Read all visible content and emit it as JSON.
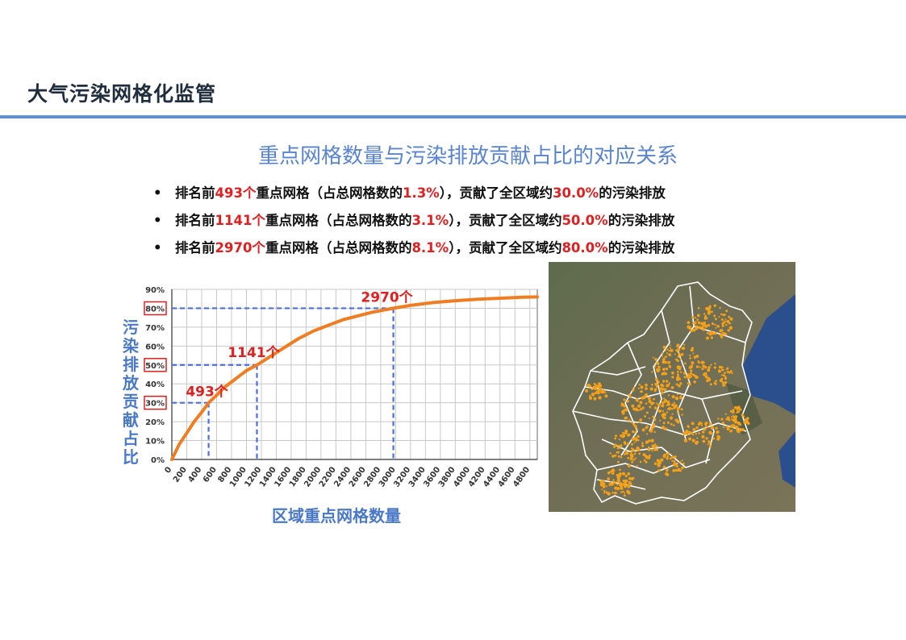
{
  "page": {
    "title": "大气污染网格化监管",
    "subtitle": "重点网格数量与污染排放贡献占比的对应关系"
  },
  "bullets": [
    {
      "p1": "排名前",
      "n": "493个",
      "p2": "重点网格（占总网格数的",
      "pct": "1.3%",
      "p3": "），贡献了全区域约",
      "share": "30.0%",
      "p4": "的污染排放"
    },
    {
      "p1": "排名前",
      "n": "1141个",
      "p2": "重点网格（占总网格数的",
      "pct": "3.1%",
      "p3": "），贡献了全区域约",
      "share": "50.0%",
      "p4": "的污染排放"
    },
    {
      "p1": "排名前",
      "n": "2970个",
      "p2": "重点网格（占总网格数的",
      "pct": "8.1%",
      "p3": "），贡献了全区域约",
      "share": "80.0%",
      "p4": "的污染排放"
    }
  ],
  "chart_data": {
    "type": "line",
    "xlabel": "区域重点网格数量",
    "ylabel": "污染排放贡献占比",
    "xlim": [
      0,
      4900
    ],
    "ylim": [
      0,
      90
    ],
    "x_ticks": [
      "0",
      "200",
      "400",
      "600",
      "800",
      "1000",
      "1200",
      "1400",
      "1600",
      "1800",
      "2000",
      "2200",
      "2400",
      "2600",
      "2800",
      "3000",
      "3200",
      "3400",
      "3600",
      "3800",
      "4000",
      "4200",
      "4400",
      "4600",
      "4800"
    ],
    "y_ticks": [
      "0%",
      "10%",
      "20%",
      "30%",
      "40%",
      "50%",
      "60%",
      "70%",
      "80%",
      "90%"
    ],
    "highlighted_y_ticks": [
      "30%",
      "50%",
      "80%"
    ],
    "series": [
      {
        "color": "#f07d22",
        "x": [
          0,
          100,
          200,
          300,
          400,
          493,
          600,
          700,
          800,
          900,
          1000,
          1141,
          1300,
          1500,
          1700,
          1900,
          2100,
          2300,
          2500,
          2700,
          2970,
          3200,
          3500,
          3800,
          4100,
          4400,
          4700,
          4900
        ],
        "y": [
          0,
          8,
          14,
          20,
          25,
          30,
          34,
          38,
          41,
          44,
          47,
          50,
          54,
          59,
          64,
          68,
          71,
          74,
          76,
          78,
          80,
          81.5,
          83,
          84,
          84.8,
          85.3,
          85.8,
          86
        ]
      }
    ],
    "annotations": [
      {
        "label": "493个",
        "x": 493,
        "y": 30
      },
      {
        "label": "1141个",
        "x": 1141,
        "y": 50
      },
      {
        "label": "2970个",
        "x": 2970,
        "y": 80
      }
    ]
  },
  "colors": {
    "accent": "#5b8fd6",
    "subtitle": "#5a84d0",
    "highlight_red": "#e02020",
    "curve": "#f07d22",
    "guide": "#4a6ee0",
    "map_points": "#f5a018"
  }
}
